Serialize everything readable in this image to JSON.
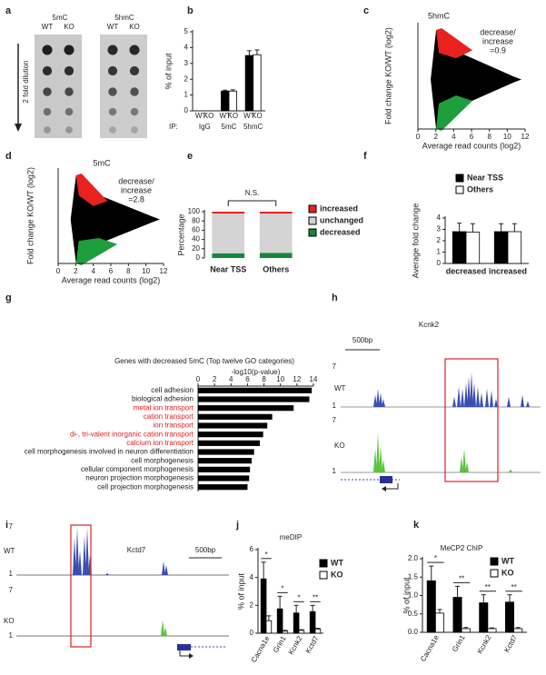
{
  "panels": {
    "a": {
      "label": "a",
      "columns": [
        "5mC",
        "5hmC"
      ],
      "lanes": [
        "WT",
        "KO"
      ],
      "arrow_label": "2 fold dilution"
    },
    "h": {
      "label": "h",
      "gene": "Kcnk2",
      "scale": "500bp",
      "tracks": [
        {
          "name": "WT",
          "max": 7,
          "min": 1
        },
        {
          "name": "KO",
          "max": 7,
          "min": 1
        }
      ]
    },
    "i": {
      "label": "i",
      "gene": "Kctd7",
      "scale": "500bp",
      "tracks": [
        {
          "name": "WT",
          "max": 7,
          "min": 1
        },
        {
          "name": "KO",
          "max": 7,
          "min": 1
        }
      ]
    }
  },
  "chart_data": [
    {
      "label": "b",
      "type": "bar",
      "ylabel": "% of input",
      "x_prefix": "IP:",
      "categories": [
        "IgG",
        "5mC",
        "5hmC"
      ],
      "series": [
        {
          "name": "WT",
          "color": "#000000",
          "values": [
            0,
            1.25,
            3.5
          ],
          "errors": [
            0,
            0.06,
            0.3
          ]
        },
        {
          "name": "KO",
          "color": "#ffffff",
          "values": [
            0,
            1.25,
            3.55
          ],
          "errors": [
            0,
            0.08,
            0.3
          ]
        }
      ],
      "ylim": [
        0,
        5
      ],
      "yticks": [
        0,
        1,
        2,
        3,
        4,
        5
      ]
    },
    {
      "label": "c",
      "type": "scatter",
      "title": "5hmC",
      "annotation": [
        "decrease/",
        "increase",
        "=0.9"
      ],
      "xlabel": "Average read counts (log2)",
      "ylabel": "Fold change KO/WT (log2)",
      "colors": [
        "#e8231f",
        "#000000",
        "#1e9e3c"
      ],
      "xlim": [
        0,
        12
      ],
      "xticks": [
        0,
        2,
        4,
        6,
        8,
        10,
        12
      ]
    },
    {
      "label": "d",
      "type": "scatter",
      "title": "5mC",
      "annotation": [
        "decrease/",
        "increase",
        "=2.8"
      ],
      "xlabel": "Average read counts (log2)",
      "ylabel": "Fold change KO/WT (log2)",
      "colors": [
        "#e8231f",
        "#000000",
        "#1e9e3c"
      ],
      "xlim": [
        0,
        12
      ],
      "xticks": [
        0,
        2,
        4,
        6,
        8,
        10,
        12
      ]
    },
    {
      "label": "e",
      "type": "stacked_bar",
      "ylabel": "Percentage",
      "annotation": "N.S.",
      "categories": [
        "Near TSS",
        "Others"
      ],
      "series": [
        {
          "name": "decreased",
          "color": "#17853a",
          "values": [
            10,
            11
          ]
        },
        {
          "name": "unchanged",
          "color": "#d4d4d4",
          "values": [
            86,
            85
          ]
        },
        {
          "name": "increased",
          "color": "#e8231f",
          "values": [
            4,
            4
          ]
        }
      ],
      "ylim": [
        0,
        100
      ],
      "yticks": [
        0,
        20,
        40,
        60,
        80,
        100
      ]
    },
    {
      "label": "f",
      "type": "bar",
      "ylabel": "Average fold change",
      "categories": [
        "decreased",
        "increased"
      ],
      "series": [
        {
          "name": "Near TSS",
          "color": "#000000",
          "values": [
            2.8,
            2.8
          ],
          "errors": [
            0.75,
            0.7
          ]
        },
        {
          "name": "Others",
          "color": "#ffffff",
          "values": [
            2.75,
            2.8
          ],
          "errors": [
            0.75,
            0.7
          ]
        }
      ],
      "ylim": [
        0,
        4
      ],
      "yticks": [
        0,
        1,
        2,
        3,
        4
      ]
    },
    {
      "label": "g",
      "type": "horizontal_bar",
      "title": "Genes with decreased 5mC (Top twelve GO categories)",
      "xlabel": "-log10(p-value)",
      "color": "#000000",
      "categories": [
        "cell adhesion",
        "biological adhesion",
        "metal ion transport",
        "cation transport",
        "ion transport",
        "di-, tri-valent inorganic cation transport",
        "calcium ion transport",
        "cell morphogenesis involved in neuron differentiation",
        "cell morphogenesis",
        "cellular component morphogenesis",
        "neuron projection morphogenesis",
        "cell projection morphogenesis"
      ],
      "label_colors": [
        "#222222",
        "#222222",
        "#e02020",
        "#e02020",
        "#e02020",
        "#e02020",
        "#e02020",
        "#222222",
        "#222222",
        "#222222",
        "#222222",
        "#222222"
      ],
      "values": [
        13.8,
        13.5,
        11.6,
        9.0,
        8.4,
        7.9,
        7.5,
        6.8,
        6.5,
        6.3,
        6.2,
        6.0
      ],
      "xlim": [
        0,
        14
      ],
      "xticks": [
        0,
        2,
        4,
        6,
        8,
        10,
        12,
        14
      ]
    },
    {
      "label": "j",
      "type": "bar",
      "title": "meDIP",
      "ylabel": "% of input",
      "categories": [
        "Cacna1e",
        "Grin1",
        "Kcnk2",
        "Kctd7"
      ],
      "significance": [
        "*",
        "*",
        "*",
        "**"
      ],
      "series": [
        {
          "name": "WT",
          "color": "#000000",
          "values": [
            3.9,
            1.75,
            1.45,
            1.55
          ],
          "errors": [
            1.2,
            0.9,
            0.55,
            0.45
          ]
        },
        {
          "name": "KO",
          "color": "#ffffff",
          "values": [
            0.9,
            0.15,
            0.2,
            0.3
          ],
          "errors": [
            0.35,
            0.05,
            0.05,
            0.05
          ]
        }
      ],
      "ylim": [
        0,
        6
      ],
      "yticks": [
        0,
        2,
        4,
        6
      ]
    },
    {
      "label": "k",
      "type": "bar",
      "title": "MeCP2 ChIP",
      "ylabel": "% of input",
      "categories": [
        "Cacna1e",
        "Grin1",
        "Kcnk2",
        "Kctd7"
      ],
      "significance": [
        "*",
        "**",
        "**",
        "**"
      ],
      "series": [
        {
          "name": "WT",
          "color": "#000000",
          "values": [
            1.4,
            0.95,
            0.8,
            0.82
          ],
          "errors": [
            0.4,
            0.3,
            0.22,
            0.2
          ]
        },
        {
          "name": "KO",
          "color": "#ffffff",
          "values": [
            0.52,
            0.1,
            0.1,
            0.1
          ],
          "errors": [
            0.1,
            0.03,
            0.02,
            0.03
          ]
        }
      ],
      "ylim": [
        0,
        2
      ],
      "yticks": [
        {
          "value": 0,
          "label": "0.0"
        },
        0.5,
        {
          "value": 1,
          "label": "1.0"
        },
        1.5,
        {
          "value": 2,
          "label": "2.0"
        }
      ]
    }
  ]
}
